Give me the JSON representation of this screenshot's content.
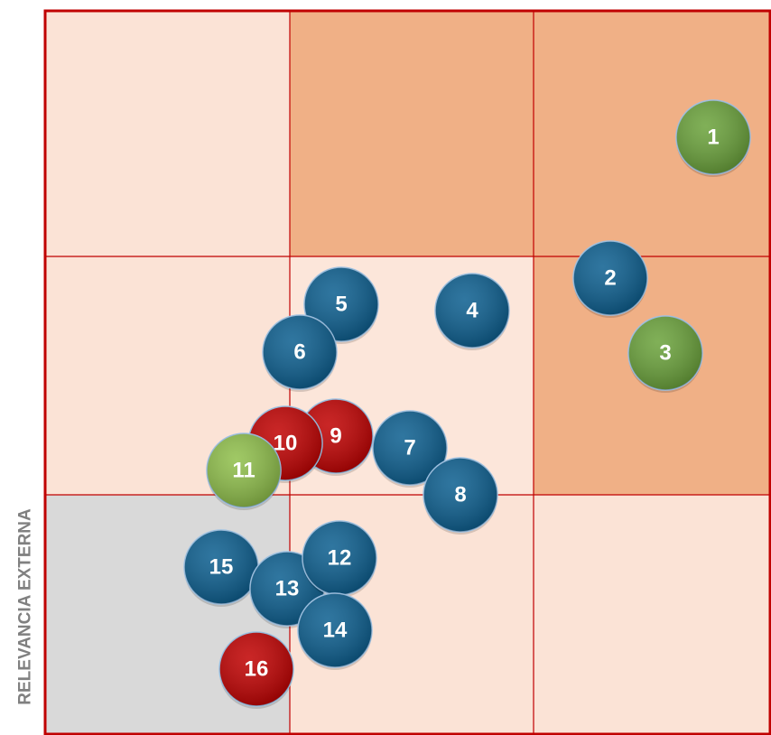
{
  "axis_label": "RELEVANCIA EXTERNA",
  "nodes": [
    {
      "label": "1"
    },
    {
      "label": "2"
    },
    {
      "label": "3"
    },
    {
      "label": "4"
    },
    {
      "label": "5"
    },
    {
      "label": "6"
    },
    {
      "label": "7"
    },
    {
      "label": "8"
    },
    {
      "label": "9"
    },
    {
      "label": "10"
    },
    {
      "label": "11"
    },
    {
      "label": "12"
    },
    {
      "label": "13"
    },
    {
      "label": "14"
    },
    {
      "label": "15"
    },
    {
      "label": "16"
    }
  ]
}
